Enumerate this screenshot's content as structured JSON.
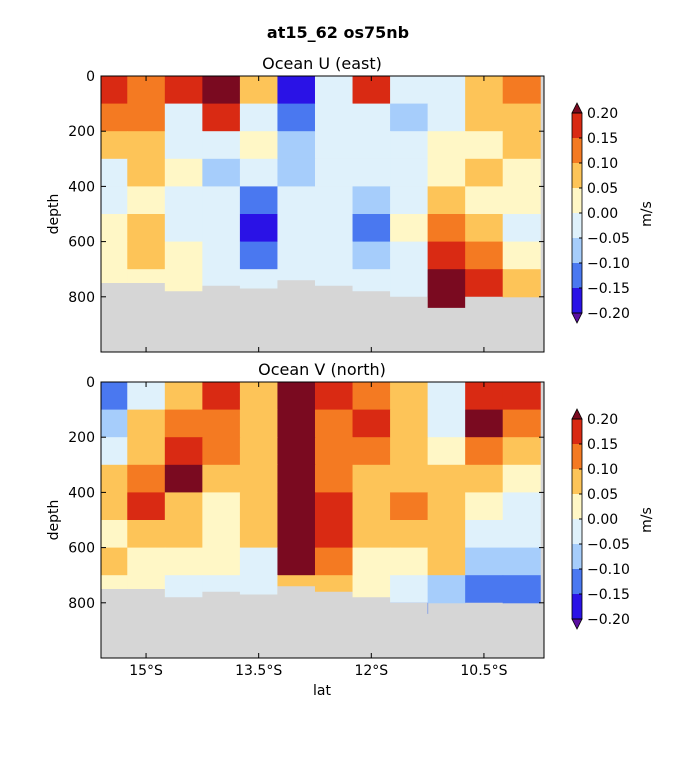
{
  "figure": {
    "title": "at15_62 os75nb"
  },
  "chart_data": [
    {
      "type": "heatmap",
      "title": "Ocean U (east)",
      "ylabel": "depth",
      "ylim": [
        1000,
        0
      ],
      "yticks": [
        0,
        200,
        400,
        600,
        800
      ],
      "ytick_labels": [
        "0",
        "200",
        "400",
        "600",
        "800"
      ],
      "xlim": [
        -15.6,
        -9.7
      ],
      "colorbar": {
        "label": "m/s",
        "levels": [
          -0.2,
          -0.15,
          -0.1,
          -0.05,
          0.0,
          0.05,
          0.1,
          0.15,
          0.2
        ],
        "tick_labels": [
          "−0.20",
          "−0.15",
          "−0.10",
          "−0.05",
          "0.00",
          "0.05",
          "0.10",
          "0.15",
          "0.20"
        ],
        "colors": [
          "#5a0fa0",
          "#2a12e6",
          "#4a78f0",
          "#a6cdfb",
          "#dff1fb",
          "#fff7c6",
          "#fdc458",
          "#f47a22",
          "#d92a13",
          "#7a0a20"
        ]
      },
      "lat": [
        -15.5,
        -15.0,
        -14.5,
        -14.0,
        -13.5,
        -13.0,
        -12.5,
        -12.0,
        -11.5,
        -11.0,
        -10.5,
        -10.0
      ],
      "depth": [
        50,
        150,
        250,
        350,
        450,
        550,
        650,
        750,
        850
      ],
      "values": [
        [
          0.18,
          0.12,
          0.15,
          0.2,
          0.05,
          -0.2,
          -0.05,
          0.15,
          -0.05,
          -0.05,
          0.05,
          0.1
        ],
        [
          0.1,
          0.1,
          -0.05,
          0.15,
          -0.05,
          -0.15,
          -0.05,
          -0.05,
          -0.1,
          -0.05,
          0.05,
          0.05
        ],
        [
          0.05,
          0.05,
          -0.05,
          -0.05,
          0.0,
          -0.1,
          -0.05,
          -0.05,
          -0.05,
          0.0,
          0.0,
          0.05
        ],
        [
          -0.05,
          0.05,
          0.0,
          -0.1,
          -0.05,
          -0.1,
          -0.05,
          -0.05,
          -0.05,
          0.0,
          0.05,
          0.0
        ],
        [
          -0.05,
          0.0,
          -0.05,
          -0.05,
          -0.15,
          -0.05,
          -0.05,
          -0.1,
          -0.05,
          0.05,
          0.0,
          0.0
        ],
        [
          0.0,
          0.05,
          -0.05,
          -0.05,
          -0.2,
          -0.05,
          -0.05,
          -0.15,
          0.0,
          0.1,
          0.05,
          -0.05
        ],
        [
          0.0,
          0.05,
          0.0,
          -0.05,
          -0.15,
          -0.05,
          -0.05,
          -0.1,
          -0.05,
          0.15,
          0.1,
          0.0
        ],
        [
          0.0,
          0.0,
          0.0,
          -0.05,
          -0.05,
          -0.05,
          -0.05,
          -0.05,
          -0.05,
          0.2,
          0.15,
          0.05
        ],
        [
          null,
          null,
          null,
          null,
          null,
          null,
          null,
          null,
          null,
          0.2,
          null,
          null
        ]
      ],
      "bottom_depth": [
        750,
        750,
        780,
        760,
        770,
        740,
        760,
        780,
        800,
        840,
        800,
        810
      ]
    },
    {
      "type": "heatmap",
      "title": "Ocean V (north)",
      "xlabel": "lat",
      "ylabel": "depth",
      "ylim": [
        1000,
        0
      ],
      "yticks": [
        0,
        200,
        400,
        600,
        800
      ],
      "ytick_labels": [
        "0",
        "200",
        "400",
        "600",
        "800"
      ],
      "xlim": [
        -15.6,
        -9.7
      ],
      "xticks": [
        -15.0,
        -13.5,
        -12.0,
        -10.5
      ],
      "xtick_labels": [
        "15°S",
        "13.5°S",
        "12°S",
        "10.5°S"
      ],
      "colorbar": {
        "label": "m/s",
        "levels": [
          -0.2,
          -0.15,
          -0.1,
          -0.05,
          0.0,
          0.05,
          0.1,
          0.15,
          0.2
        ],
        "tick_labels": [
          "−0.20",
          "−0.15",
          "−0.10",
          "−0.05",
          "0.00",
          "0.05",
          "0.10",
          "0.15",
          "0.20"
        ],
        "colors": [
          "#5a0fa0",
          "#2a12e6",
          "#4a78f0",
          "#a6cdfb",
          "#dff1fb",
          "#fff7c6",
          "#fdc458",
          "#f47a22",
          "#d92a13",
          "#7a0a20"
        ]
      },
      "lat": [
        -15.5,
        -15.0,
        -14.5,
        -14.0,
        -13.5,
        -13.0,
        -12.5,
        -12.0,
        -11.5,
        -11.0,
        -10.5,
        -10.0
      ],
      "depth": [
        50,
        150,
        250,
        350,
        450,
        550,
        650,
        750,
        850
      ],
      "values": [
        [
          -0.15,
          -0.05,
          0.05,
          0.15,
          0.05,
          0.25,
          0.15,
          0.1,
          0.05,
          -0.05,
          0.15,
          0.15
        ],
        [
          -0.1,
          0.05,
          0.1,
          0.1,
          0.05,
          0.25,
          0.1,
          0.15,
          0.05,
          -0.05,
          0.2,
          0.1
        ],
        [
          -0.05,
          0.05,
          0.15,
          0.1,
          0.05,
          0.2,
          0.1,
          0.1,
          0.05,
          0.0,
          0.1,
          0.05
        ],
        [
          0.05,
          0.1,
          0.2,
          0.05,
          0.05,
          0.25,
          0.1,
          0.05,
          0.05,
          0.05,
          0.05,
          0.0
        ],
        [
          0.05,
          0.15,
          0.05,
          0.0,
          0.05,
          0.25,
          0.15,
          0.05,
          0.1,
          0.05,
          0.0,
          -0.05
        ],
        [
          0.0,
          0.05,
          0.05,
          0.0,
          0.05,
          0.25,
          0.15,
          0.05,
          0.05,
          0.05,
          -0.05,
          -0.05
        ],
        [
          0.05,
          0.0,
          0.0,
          0.0,
          -0.05,
          0.2,
          0.1,
          0.0,
          0.0,
          0.05,
          -0.1,
          -0.1
        ],
        [
          0.0,
          0.0,
          -0.05,
          -0.05,
          -0.05,
          0.05,
          0.05,
          0.0,
          -0.05,
          -0.1,
          -0.15,
          -0.15
        ],
        [
          null,
          null,
          null,
          null,
          null,
          null,
          null,
          null,
          -0.15,
          null,
          null,
          null
        ]
      ],
      "bottom_depth": [
        750,
        750,
        780,
        760,
        770,
        740,
        760,
        780,
        800,
        840,
        800,
        810
      ]
    }
  ]
}
